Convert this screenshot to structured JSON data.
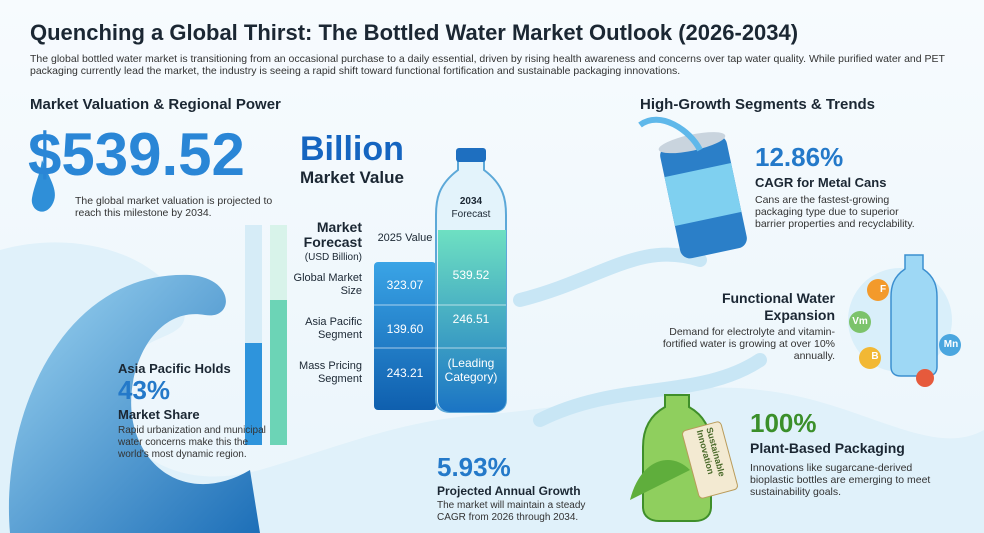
{
  "header": {
    "title": "Quenching a Global Thirst: The Bottled Water Market Outlook (2026-2034)",
    "subtitle": "The global bottled water market is transitioning from an occasional purchase to a daily essential, driven by rising health awareness and concerns over tap water quality. While purified water and PET packaging currently lead the market, the industry is seeing a rapid shift toward functional fortification and sustainable packaging innovations."
  },
  "left": {
    "heading": "Market Valuation & Regional Power",
    "big_value": "$539.52",
    "big_unit": "Billion",
    "big_label": "Market Value",
    "big_note": "The global market valuation is projected to reach this milestone by 2034."
  },
  "table": {
    "title": "Market Forecast",
    "units": "(USD Billion)",
    "col_2025": "2025 Value",
    "col_2034_year": "2034",
    "col_2034_label": "Forecast",
    "rows": [
      [
        "Global Market Size",
        "323.07",
        "539.52"
      ],
      [
        "Asia Pacific Segment",
        "139.60",
        "246.51"
      ],
      [
        "Mass Pricing Segment",
        "243.21",
        "(Leading Category)"
      ]
    ]
  },
  "asia": {
    "lead": "Asia Pacific Holds",
    "value": "43%",
    "label": "Market Share",
    "note": "Rapid urbanization and municipal water concerns make this the world's most dynamic region."
  },
  "growth": {
    "value": "5.93%",
    "label": "Projected Annual Growth",
    "note": "The market will maintain a steady CAGR from 2026 through 2034."
  },
  "right": {
    "heading": "High-Growth Segments & Trends"
  },
  "trends": [
    {
      "value": "12.86%",
      "label": "CAGR for Metal Cans",
      "note": "Cans are the fastest-growing packaging type due to superior barrier properties and recyclability."
    },
    {
      "title": "Functional Water Expansion",
      "note": "Demand for electrolyte and vitamin-fortified water is growing at over 10% annually."
    },
    {
      "value": "100%",
      "label": "Plant-Based Packaging",
      "note": "Innovations like sugarcane-derived bioplastic bottles are emerging to meet sustainability goals."
    }
  ],
  "icons": {
    "tag": "Sustainable Innovation",
    "vitamins": [
      "F",
      "Vm",
      "Mn",
      "B"
    ]
  }
}
